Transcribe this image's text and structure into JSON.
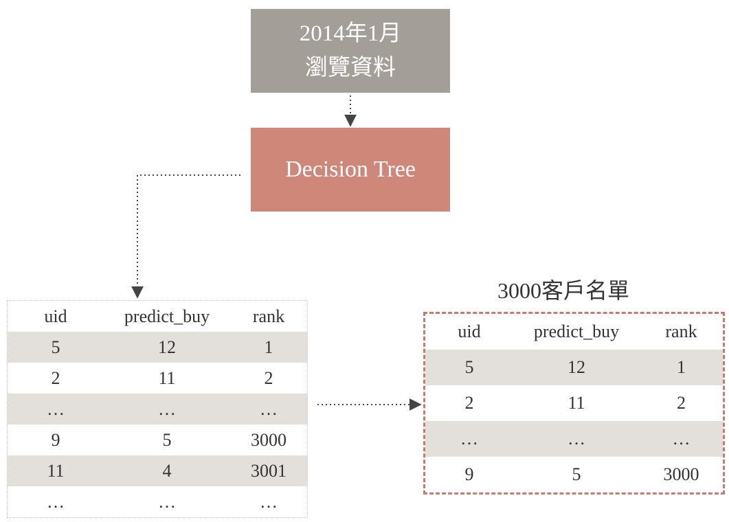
{
  "source": {
    "line1": "2014年1月",
    "line2": "瀏覽資料"
  },
  "model": {
    "label": "Decision Tree"
  },
  "full_table": {
    "headers": [
      "uid",
      "predict_buy",
      "rank"
    ],
    "rows": [
      [
        "5",
        "12",
        "1"
      ],
      [
        "2",
        "11",
        "2"
      ],
      [
        "…",
        "…",
        "…"
      ],
      [
        "9",
        "5",
        "3000"
      ],
      [
        "11",
        "4",
        "3001"
      ],
      [
        "…",
        "…",
        "…"
      ]
    ]
  },
  "top_list": {
    "title": "3000客戶名單",
    "headers": [
      "uid",
      "predict_buy",
      "rank"
    ],
    "rows": [
      [
        "5",
        "12",
        "1"
      ],
      [
        "2",
        "11",
        "2"
      ],
      [
        "…",
        "…",
        "…"
      ],
      [
        "9",
        "5",
        "3000"
      ]
    ]
  },
  "colors": {
    "source_box": "#a39e97",
    "model_box": "#cf877a",
    "row_shade": "#e3e0dc",
    "dashed_border": "#c97b6b",
    "connector": "#444444"
  }
}
